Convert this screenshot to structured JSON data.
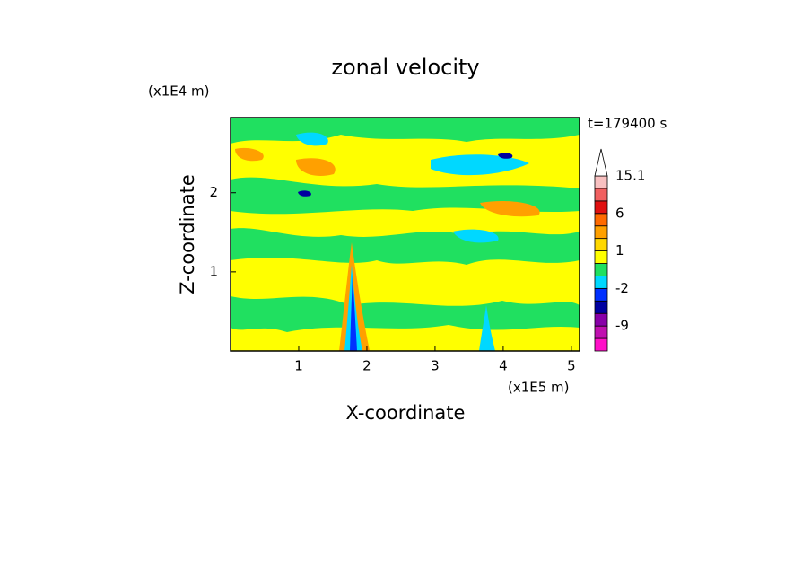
{
  "chart_data": {
    "type": "contour",
    "title": "zonal velocity",
    "x_label": "X-coordinate",
    "y_label": "Z-coordinate",
    "x_unit": "(x1E5 m)",
    "y_unit": "(x1E4 m)",
    "annotation": "t=179400 s",
    "xlim": [
      0,
      5.12
    ],
    "xticks": [
      1,
      2,
      3,
      4,
      5
    ],
    "ylim": [
      0,
      2.95
    ],
    "yticks": [
      1,
      2
    ],
    "colorbar": {
      "levels": [
        -15,
        -12,
        -9,
        -6,
        -3,
        -2,
        -1,
        0,
        1,
        2,
        3,
        6,
        9,
        12,
        15.1
      ],
      "colors": [
        "#ff10c8",
        "#c010b0",
        "#8800a8",
        "#0000a0",
        "#0030ff",
        "#00d8ff",
        "#20e060",
        "#ffff00",
        "#ffd800",
        "#ffa000",
        "#ff6a00",
        "#e01010",
        "#f06060",
        "#f8c0c0"
      ],
      "ticks": [
        15.1,
        6,
        1,
        -2,
        -9
      ]
    }
  }
}
